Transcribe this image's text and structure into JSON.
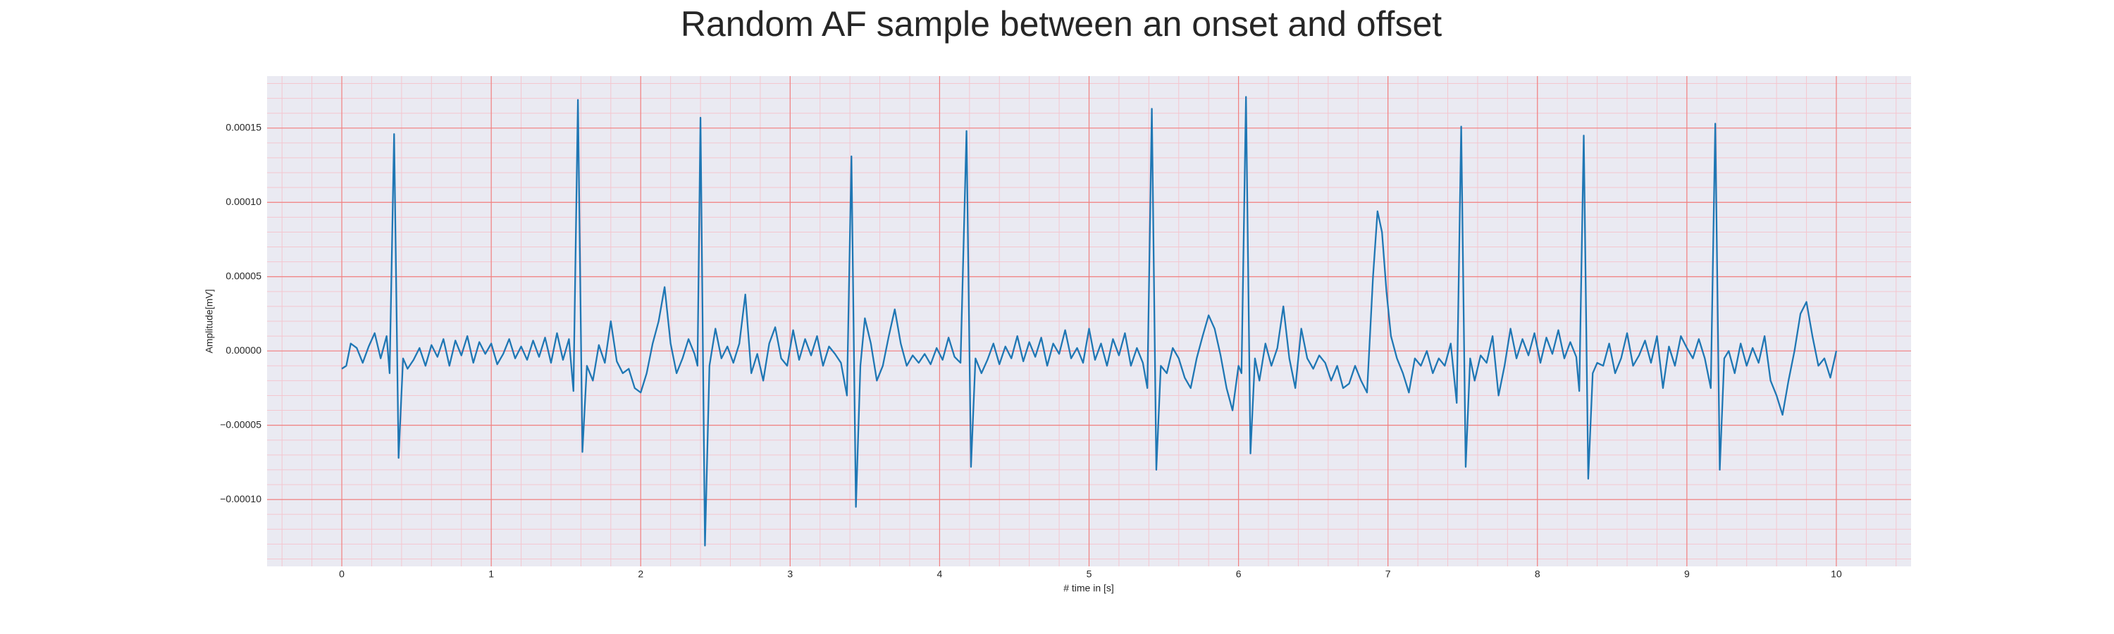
{
  "chart_data": {
    "type": "line",
    "title": "Random AF sample between an onset and offset",
    "xlabel": "# time in [s]",
    "ylabel": "Amplitude[mV]",
    "color": "#1f77b4",
    "background": "#eaeaf2",
    "grid": true,
    "grid_color": "#f08080",
    "minor_grid": true,
    "minor_grid_color": "#f4c6cf",
    "xlim": [
      -0.5,
      10.5
    ],
    "xticks": [
      0,
      1,
      2,
      3,
      4,
      5,
      6,
      7,
      8,
      9,
      10
    ],
    "ylim": [
      -0.000145,
      0.000185
    ],
    "yticks": [
      {
        "value": -0.0001,
        "label": "−0.00010"
      },
      {
        "value": -5e-05,
        "label": "−0.00005"
      },
      {
        "value": 0,
        "label": "0.00000"
      },
      {
        "value": 5e-05,
        "label": "0.00005"
      },
      {
        "value": 0.0001,
        "label": "0.00010"
      },
      {
        "value": 0.00015,
        "label": "0.00015"
      }
    ],
    "x": [
      0,
      0.03,
      0.06,
      0.1,
      0.14,
      0.18,
      0.22,
      0.26,
      0.3,
      0.32,
      0.35,
      0.38,
      0.41,
      0.44,
      0.48,
      0.52,
      0.56,
      0.6,
      0.64,
      0.68,
      0.72,
      0.76,
      0.8,
      0.84,
      0.88,
      0.92,
      0.96,
      1.0,
      1.04,
      1.08,
      1.12,
      1.16,
      1.2,
      1.24,
      1.28,
      1.32,
      1.36,
      1.4,
      1.44,
      1.48,
      1.52,
      1.55,
      1.58,
      1.61,
      1.64,
      1.68,
      1.72,
      1.76,
      1.8,
      1.84,
      1.88,
      1.92,
      1.96,
      2.0,
      2.04,
      2.08,
      2.12,
      2.16,
      2.2,
      2.24,
      2.28,
      2.32,
      2.36,
      2.38,
      2.4,
      2.43,
      2.46,
      2.5,
      2.54,
      2.58,
      2.62,
      2.66,
      2.7,
      2.74,
      2.78,
      2.82,
      2.86,
      2.9,
      2.94,
      2.98,
      3.02,
      3.06,
      3.1,
      3.14,
      3.18,
      3.22,
      3.26,
      3.3,
      3.34,
      3.38,
      3.41,
      3.44,
      3.47,
      3.5,
      3.54,
      3.58,
      3.62,
      3.66,
      3.7,
      3.74,
      3.78,
      3.82,
      3.86,
      3.9,
      3.94,
      3.98,
      4.02,
      4.06,
      4.1,
      4.14,
      4.18,
      4.21,
      4.24,
      4.28,
      4.32,
      4.36,
      4.4,
      4.44,
      4.48,
      4.52,
      4.56,
      4.6,
      4.64,
      4.68,
      4.72,
      4.76,
      4.8,
      4.84,
      4.88,
      4.92,
      4.96,
      5.0,
      5.04,
      5.08,
      5.12,
      5.16,
      5.2,
      5.24,
      5.28,
      5.32,
      5.36,
      5.39,
      5.42,
      5.45,
      5.48,
      5.52,
      5.56,
      5.6,
      5.64,
      5.68,
      5.72,
      5.76,
      5.8,
      5.84,
      5.88,
      5.92,
      5.96,
      6.0,
      6.02,
      6.05,
      6.08,
      6.11,
      6.14,
      6.18,
      6.22,
      6.26,
      6.3,
      6.34,
      6.38,
      6.42,
      6.46,
      6.5,
      6.54,
      6.58,
      6.62,
      6.66,
      6.7,
      6.74,
      6.78,
      6.82,
      6.86,
      6.9,
      6.93,
      6.96,
      6.99,
      7.02,
      7.06,
      7.1,
      7.14,
      7.18,
      7.22,
      7.26,
      7.3,
      7.34,
      7.38,
      7.42,
      7.46,
      7.49,
      7.52,
      7.55,
      7.58,
      7.62,
      7.66,
      7.7,
      7.74,
      7.78,
      7.82,
      7.86,
      7.9,
      7.94,
      7.98,
      8.02,
      8.06,
      8.1,
      8.14,
      8.18,
      8.22,
      8.26,
      8.28,
      8.31,
      8.34,
      8.37,
      8.4,
      8.44,
      8.48,
      8.52,
      8.56,
      8.6,
      8.64,
      8.68,
      8.72,
      8.76,
      8.8,
      8.84,
      8.88,
      8.92,
      8.96,
      9.0,
      9.04,
      9.08,
      9.12,
      9.16,
      9.19,
      9.22,
      9.25,
      9.28,
      9.32,
      9.36,
      9.4,
      9.44,
      9.48,
      9.52,
      9.56,
      9.6,
      9.64,
      9.68,
      9.72,
      9.76,
      9.8,
      9.84,
      9.88,
      9.92,
      9.96,
      10.0
    ],
    "values": [
      -1.2e-05,
      -1e-05,
      5e-06,
      2e-06,
      -8e-06,
      3e-06,
      1.2e-05,
      -5e-06,
      1e-05,
      -1.5e-05,
      0.000146,
      -7.2e-05,
      -5e-06,
      -1.2e-05,
      -6e-06,
      2e-06,
      -1e-05,
      4e-06,
      -4e-06,
      8e-06,
      -1e-05,
      7e-06,
      -3e-06,
      1e-05,
      -8e-06,
      6e-06,
      -2e-06,
      5e-06,
      -9e-06,
      -2e-06,
      8e-06,
      -5e-06,
      3e-06,
      -6e-06,
      7e-06,
      -4e-06,
      9e-06,
      -8e-06,
      1.2e-05,
      -6e-06,
      8e-06,
      -2.7e-05,
      0.000169,
      -6.8e-05,
      -1e-05,
      -2e-05,
      4e-06,
      -8e-06,
      2e-05,
      -7e-06,
      -1.5e-05,
      -1.2e-05,
      -2.5e-05,
      -2.8e-05,
      -1.5e-05,
      5e-06,
      2e-05,
      4.3e-05,
      5e-06,
      -1.5e-05,
      -5e-06,
      8e-06,
      -2e-06,
      -1e-05,
      0.000157,
      -0.000131,
      -1e-05,
      1.5e-05,
      -5e-06,
      3e-06,
      -8e-06,
      5e-06,
      3.8e-05,
      -1.5e-05,
      -2e-06,
      -2e-05,
      5e-06,
      1.6e-05,
      -5e-06,
      -1e-05,
      1.4e-05,
      -6e-06,
      8e-06,
      -3e-06,
      1e-05,
      -1e-05,
      3e-06,
      -2e-06,
      -8e-06,
      -3e-05,
      0.000131,
      -0.000105,
      -1e-05,
      2.2e-05,
      5e-06,
      -2e-05,
      -1e-05,
      1e-05,
      2.8e-05,
      5e-06,
      -1e-05,
      -3e-06,
      -8e-06,
      -2e-06,
      -9e-06,
      2e-06,
      -6e-06,
      9e-06,
      -4e-06,
      -8e-06,
      0.000148,
      -7.8e-05,
      -5e-06,
      -1.5e-05,
      -6e-06,
      5e-06,
      -9e-06,
      3e-06,
      -5e-06,
      1e-05,
      -7e-06,
      6e-06,
      -4e-06,
      9e-06,
      -1e-05,
      5e-06,
      -2e-06,
      1.4e-05,
      -5e-06,
      2e-06,
      -8e-06,
      1.5e-05,
      -6e-06,
      5e-06,
      -1e-05,
      8e-06,
      -3e-06,
      1.2e-05,
      -1e-05,
      2e-06,
      -8e-06,
      -2.5e-05,
      0.000163,
      -8e-05,
      -1e-05,
      -1.5e-05,
      2e-06,
      -5e-06,
      -1.8e-05,
      -2.5e-05,
      -5e-06,
      1e-05,
      2.4e-05,
      1.5e-05,
      -3e-06,
      -2.5e-05,
      -4e-05,
      -1e-05,
      -1.5e-05,
      0.000171,
      -6.9e-05,
      -5e-06,
      -2e-05,
      5e-06,
      -1e-05,
      2e-06,
      3e-05,
      -5e-06,
      -2.5e-05,
      1.5e-05,
      -5e-06,
      -1.2e-05,
      -3e-06,
      -8e-06,
      -2e-05,
      -1e-05,
      -2.5e-05,
      -2.2e-05,
      -1e-05,
      -2e-05,
      -2.8e-05,
      5e-05,
      9.4e-05,
      8e-05,
      4e-05,
      1e-05,
      -5e-06,
      -1.5e-05,
      -2.8e-05,
      -5e-06,
      -1e-05,
      0,
      -1.5e-05,
      -5e-06,
      -1e-05,
      5e-06,
      -3.5e-05,
      0.000151,
      -7.8e-05,
      -5e-06,
      -2e-05,
      -3e-06,
      -8e-06,
      1e-05,
      -3e-05,
      -1e-05,
      1.5e-05,
      -5e-06,
      8e-06,
      -3e-06,
      1.2e-05,
      -8e-06,
      9e-06,
      -2e-06,
      1.4e-05,
      -5e-06,
      6e-06,
      -4e-06,
      -2.7e-05,
      0.000145,
      -8.6e-05,
      -1.5e-05,
      -8e-06,
      -1e-05,
      5e-06,
      -1.5e-05,
      -5e-06,
      1.2e-05,
      -1e-05,
      -3e-06,
      7e-06,
      -8e-06,
      1e-05,
      -2.5e-05,
      3e-06,
      -1e-05,
      1e-05,
      2e-06,
      -5e-06,
      8e-06,
      -5e-06,
      -2.5e-05,
      0.000153,
      -8e-05,
      -5e-06,
      0,
      -1.5e-05,
      5e-06,
      -1e-05,
      2e-06,
      -8e-06,
      1e-05,
      -2e-05,
      -3e-05,
      -4.3e-05,
      -2e-05,
      0,
      2.5e-05,
      3.3e-05,
      1e-05,
      -1e-05,
      -5e-06,
      -1.8e-05,
      0
    ]
  }
}
